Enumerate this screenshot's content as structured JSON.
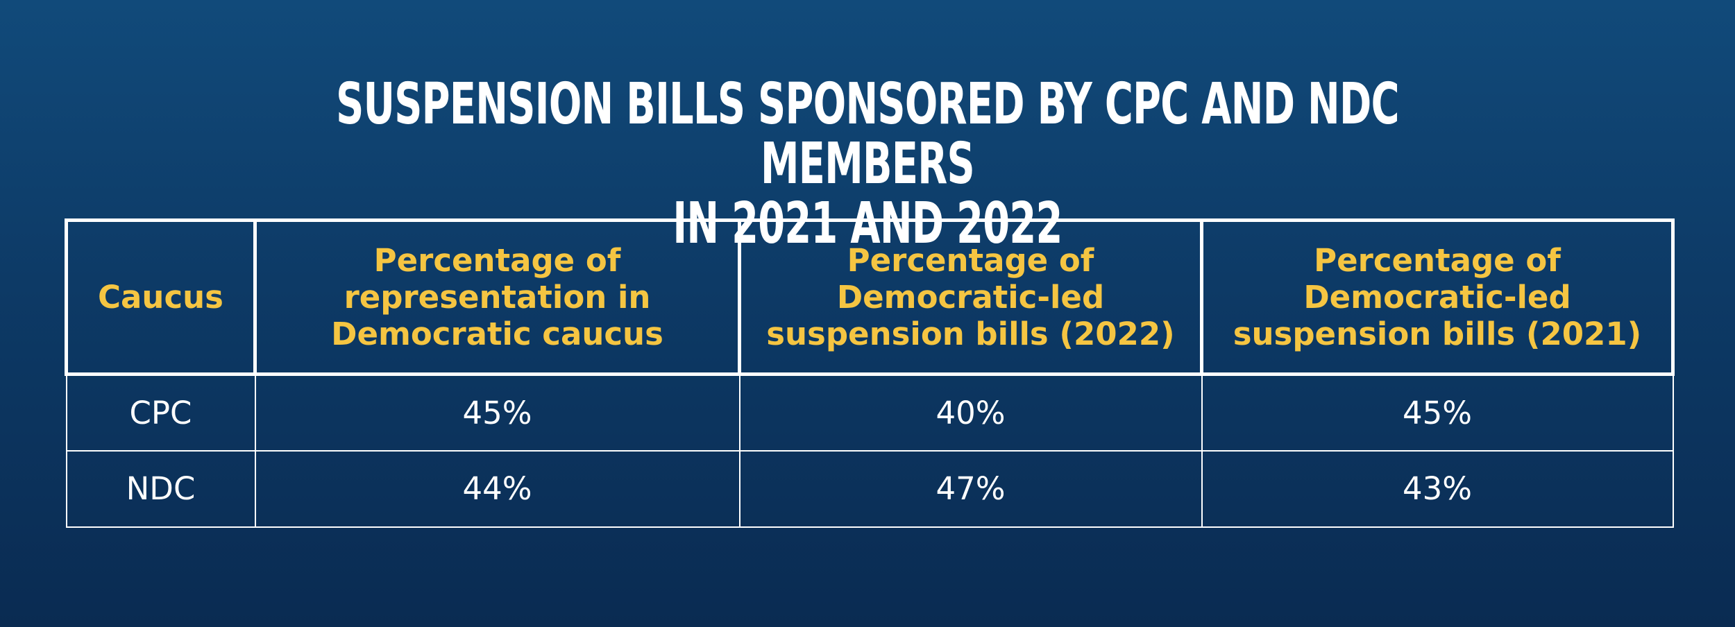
{
  "chart_data": {
    "type": "table",
    "title_lines": [
      "SUSPENSION BILLS SPONSORED BY CPC AND NDC MEMBERS",
      "IN 2021 AND 2022"
    ],
    "columns": [
      "Caucus",
      "Percentage of representation in Democratic caucus",
      "Percentage of Democratic-led suspension bills (2022)",
      "Percentage of Democratic-led suspension bills (2021)"
    ],
    "rows": [
      [
        "CPC",
        "45%",
        "40%",
        "45%"
      ],
      [
        "NDC",
        "44%",
        "47%",
        "43%"
      ]
    ],
    "values": {
      "CPC": {
        "representation": 45,
        "bills_2022": 40,
        "bills_2021": 45
      },
      "NDC": {
        "representation": 44,
        "bills_2022": 47,
        "bills_2021": 43
      }
    },
    "unit": "%"
  },
  "colors": {
    "background_top": "#114a7a",
    "background_bottom": "#0a2b52",
    "title_text": "#ffffff",
    "header_text": "#f5c542",
    "cell_text": "#ffffff",
    "grid_lines": "#ffffff"
  }
}
